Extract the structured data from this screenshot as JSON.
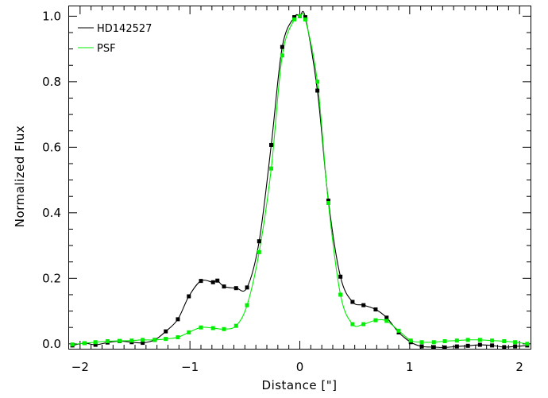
{
  "chart_data": {
    "type": "line",
    "xlabel": "Distance [\"]",
    "ylabel": "Normalized Flux",
    "xlim": [
      -2.1,
      2.1
    ],
    "ylim": [
      -0.015,
      1.03
    ],
    "grid": false,
    "legend_position": "top-left",
    "x_ticks": [
      -2,
      -1,
      0,
      1,
      2
    ],
    "x_tick_labels": [
      "−2",
      "−1",
      "0",
      "1",
      "2"
    ],
    "y_ticks": [
      0.0,
      0.2,
      0.4,
      0.6,
      0.8,
      1.0
    ],
    "y_tick_labels": [
      "0.0",
      "0.2",
      "0.4",
      "0.6",
      "0.8",
      "1.0"
    ],
    "series": [
      {
        "name": "HD142527",
        "color": "#000000",
        "x": [
          -2.07,
          -1.96,
          -1.86,
          -1.75,
          -1.64,
          -1.53,
          -1.43,
          -1.32,
          -1.22,
          -1.11,
          -1.01,
          -0.9,
          -0.79,
          -0.75,
          -0.69,
          -0.58,
          -0.48,
          -0.37,
          -0.26,
          -0.16,
          -0.05,
          0.0,
          0.05,
          0.16,
          0.26,
          0.37,
          0.48,
          0.58,
          0.69,
          0.79,
          0.9,
          1.01,
          1.11,
          1.22,
          1.32,
          1.43,
          1.53,
          1.64,
          1.75,
          1.86,
          1.96,
          2.07
        ],
        "y": [
          -0.005,
          0.002,
          -0.003,
          0.004,
          0.008,
          0.005,
          0.003,
          0.012,
          0.038,
          0.075,
          0.145,
          0.192,
          0.188,
          0.193,
          0.175,
          0.17,
          0.172,
          0.313,
          0.607,
          0.906,
          0.997,
          1.0,
          0.997,
          0.773,
          0.437,
          0.205,
          0.128,
          0.118,
          0.105,
          0.08,
          0.035,
          0.005,
          -0.008,
          -0.01,
          -0.011,
          -0.008,
          -0.006,
          -0.003,
          -0.005,
          -0.01,
          -0.008,
          -0.005
        ]
      },
      {
        "name": "PSF",
        "color": "#00ee00",
        "x": [
          -2.07,
          -1.96,
          -1.86,
          -1.75,
          -1.64,
          -1.53,
          -1.43,
          -1.32,
          -1.22,
          -1.11,
          -1.01,
          -0.9,
          -0.79,
          -0.69,
          -0.58,
          -0.48,
          -0.37,
          -0.26,
          -0.16,
          -0.05,
          0.0,
          0.05,
          0.16,
          0.26,
          0.37,
          0.48,
          0.58,
          0.69,
          0.79,
          0.9,
          1.01,
          1.11,
          1.22,
          1.32,
          1.43,
          1.53,
          1.64,
          1.75,
          1.86,
          1.96,
          2.07
        ],
        "y": [
          -0.002,
          0.002,
          0.005,
          0.008,
          0.009,
          0.01,
          0.012,
          0.012,
          0.015,
          0.02,
          0.035,
          0.05,
          0.048,
          0.045,
          0.055,
          0.118,
          0.28,
          0.535,
          0.88,
          0.99,
          1.0,
          0.99,
          0.8,
          0.43,
          0.15,
          0.06,
          0.06,
          0.072,
          0.07,
          0.04,
          0.01,
          0.005,
          0.005,
          0.008,
          0.01,
          0.012,
          0.012,
          0.01,
          0.008,
          0.005,
          0.0
        ]
      }
    ]
  }
}
